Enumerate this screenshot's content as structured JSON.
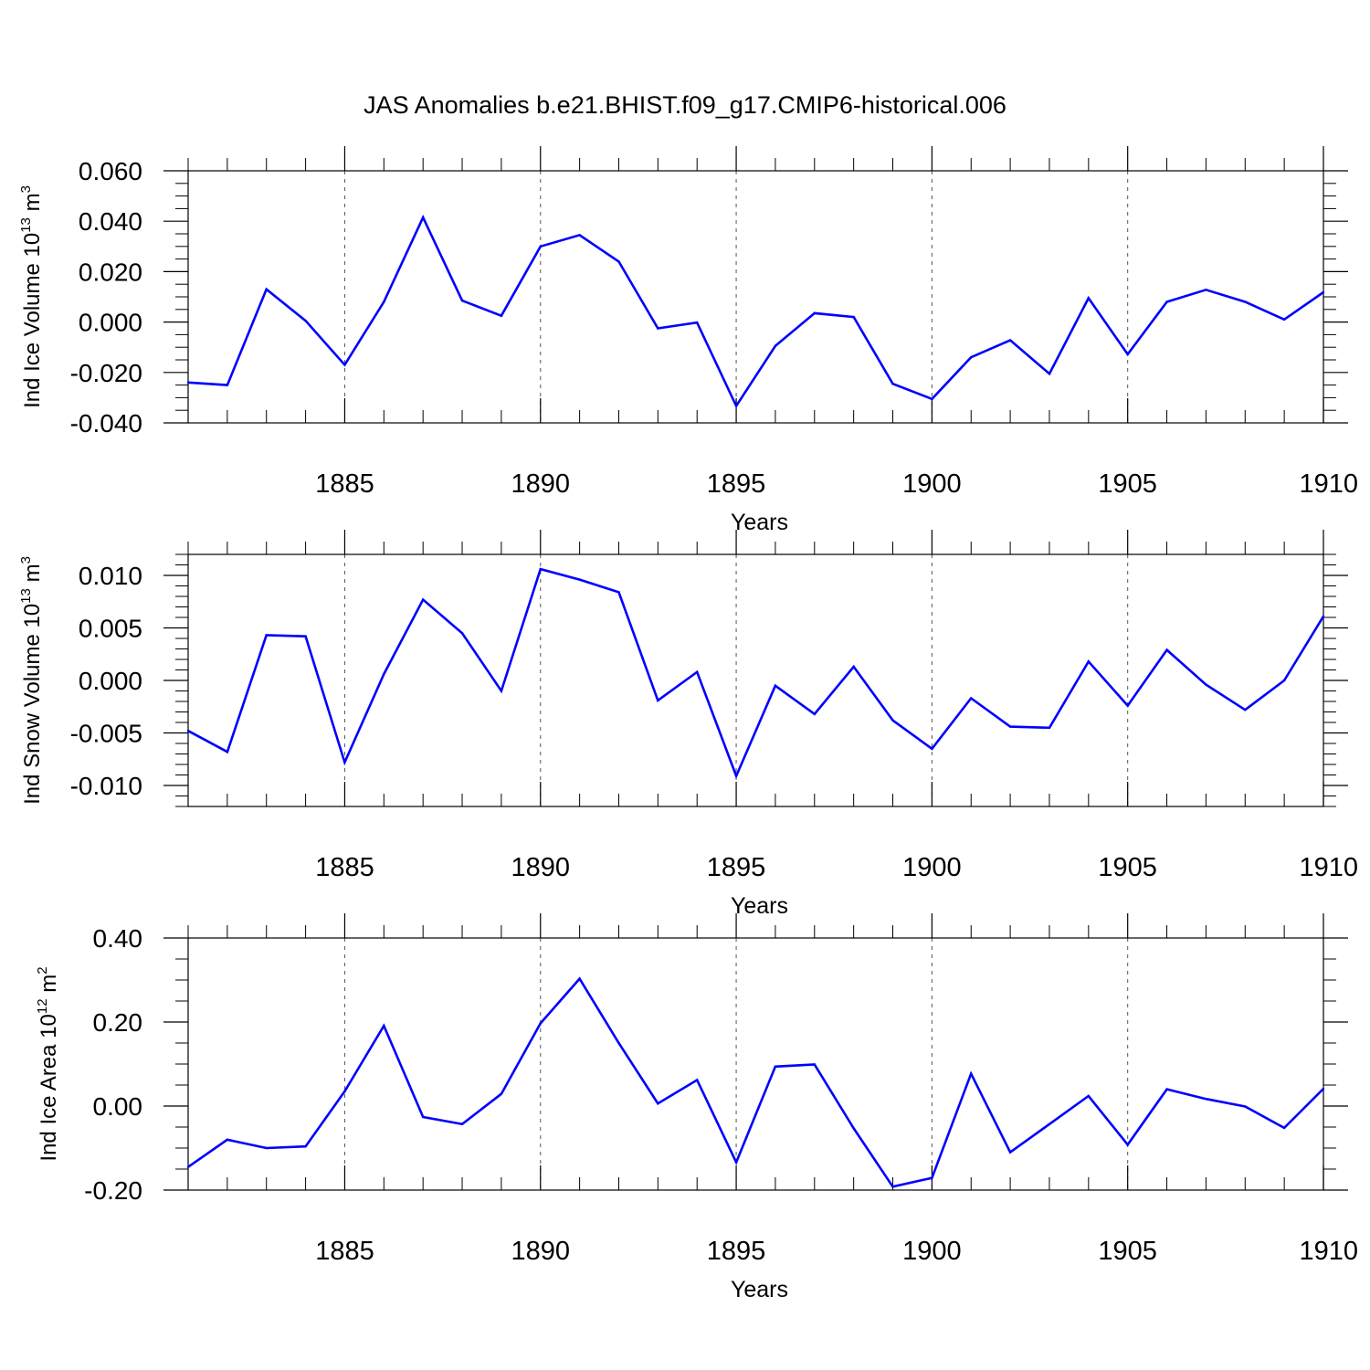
{
  "title": "JAS Anomalies b.e21.BHIST.f09_g17.CMIP6-historical.006",
  "colors": {
    "series": "#0000ff",
    "axis": "#000000",
    "grid": "#555555"
  },
  "chart_data": [
    {
      "type": "line",
      "xlabel": "Years",
      "ylabel": {
        "text": "Ind Ice Volume 10",
        "exp": "13",
        "unit": " m",
        "unit_exp": "3"
      },
      "xlim": [
        1881,
        1910
      ],
      "ylim": [
        -0.04,
        0.06
      ],
      "xticks": [
        1885,
        1890,
        1895,
        1900,
        1905,
        1910
      ],
      "xtick_labels": [
        "1885",
        "1890",
        "1895",
        "1900",
        "1905",
        "1910"
      ],
      "yticks": [
        -0.04,
        -0.02,
        0.0,
        0.02,
        0.04,
        0.06
      ],
      "ytick_labels": [
        "-0.040",
        "-0.020",
        "0.000",
        "0.020",
        "0.040",
        "0.060"
      ],
      "yminor_step": 0.005,
      "grid": "vertical dashed at major x ticks",
      "series": [
        {
          "name": "Ind Ice Volume",
          "x": [
            1881,
            1882,
            1883,
            1884,
            1885,
            1886,
            1887,
            1888,
            1889,
            1890,
            1891,
            1892,
            1893,
            1894,
            1895,
            1896,
            1897,
            1898,
            1899,
            1900,
            1901,
            1902,
            1903,
            1904,
            1905,
            1906,
            1907,
            1908,
            1909,
            1910
          ],
          "values": [
            -0.024,
            -0.025,
            0.013,
            0.0005,
            -0.017,
            0.008,
            0.0415,
            0.0085,
            0.0025,
            0.03,
            0.0345,
            0.024,
            -0.0025,
            -0.0002,
            -0.0333,
            -0.0095,
            0.0035,
            0.002,
            -0.0245,
            -0.0305,
            -0.014,
            -0.0072,
            -0.0205,
            0.0095,
            -0.0128,
            0.008,
            0.0128,
            0.008,
            0.001,
            0.0118
          ]
        }
      ]
    },
    {
      "type": "line",
      "xlabel": "Years",
      "ylabel": {
        "text": "Ind Snow Volume 10",
        "exp": "13",
        "unit": " m",
        "unit_exp": "3"
      },
      "xlim": [
        1881,
        1910
      ],
      "ylim": [
        -0.012,
        0.012
      ],
      "xticks": [
        1885,
        1890,
        1895,
        1900,
        1905,
        1910
      ],
      "xtick_labels": [
        "1885",
        "1890",
        "1895",
        "1900",
        "1905",
        "1910"
      ],
      "yticks": [
        -0.01,
        -0.005,
        0.0,
        0.005,
        0.01
      ],
      "ytick_labels": [
        "-0.010",
        "-0.005",
        "0.000",
        "0.005",
        "0.010"
      ],
      "yminor_step": 0.001,
      "grid": "vertical dashed at major x ticks",
      "series": [
        {
          "name": "Ind Snow Volume",
          "x": [
            1881,
            1882,
            1883,
            1884,
            1885,
            1886,
            1887,
            1888,
            1889,
            1890,
            1891,
            1892,
            1893,
            1894,
            1895,
            1896,
            1897,
            1898,
            1899,
            1900,
            1901,
            1902,
            1903,
            1904,
            1905,
            1906,
            1907,
            1908,
            1909,
            1910
          ],
          "values": [
            -0.0048,
            -0.0068,
            0.0043,
            0.0042,
            -0.0078,
            0.0006,
            0.0077,
            0.0045,
            -0.001,
            0.0106,
            0.0096,
            0.0084,
            -0.0019,
            0.0008,
            -0.0091,
            -0.0005,
            -0.0032,
            0.0013,
            -0.0038,
            -0.0065,
            -0.0017,
            -0.0044,
            -0.0045,
            0.0018,
            -0.0024,
            0.0029,
            -0.0004,
            -0.0028,
            0.0,
            0.0061
          ]
        }
      ]
    },
    {
      "type": "line",
      "xlabel": "Years",
      "ylabel": {
        "text": "Ind Ice Area 10",
        "exp": "12",
        "unit": " m",
        "unit_exp": "2"
      },
      "xlim": [
        1881,
        1910
      ],
      "ylim": [
        -0.2,
        0.4
      ],
      "xticks": [
        1885,
        1890,
        1895,
        1900,
        1905,
        1910
      ],
      "xtick_labels": [
        "1885",
        "1890",
        "1895",
        "1900",
        "1905",
        "1910"
      ],
      "yticks": [
        -0.2,
        0.0,
        0.2,
        0.4
      ],
      "ytick_labels": [
        "-0.20",
        "0.00",
        "0.20",
        "0.40"
      ],
      "yminor_step": 0.05,
      "grid": "vertical dashed at major x ticks",
      "series": [
        {
          "name": "Ind Ice Area",
          "x": [
            1881,
            1882,
            1883,
            1884,
            1885,
            1886,
            1887,
            1888,
            1889,
            1890,
            1891,
            1892,
            1893,
            1894,
            1895,
            1896,
            1897,
            1898,
            1899,
            1900,
            1901,
            1902,
            1903,
            1904,
            1905,
            1906,
            1907,
            1908,
            1909,
            1910
          ],
          "values": [
            -0.145,
            -0.08,
            -0.1,
            -0.096,
            0.035,
            0.191,
            -0.026,
            -0.043,
            0.029,
            0.197,
            0.303,
            0.15,
            0.006,
            0.062,
            -0.134,
            0.094,
            0.099,
            -0.053,
            -0.192,
            -0.171,
            0.077,
            -0.11,
            -0.043,
            0.024,
            -0.092,
            0.04,
            0.017,
            -0.001,
            -0.052,
            0.041
          ]
        }
      ]
    }
  ]
}
